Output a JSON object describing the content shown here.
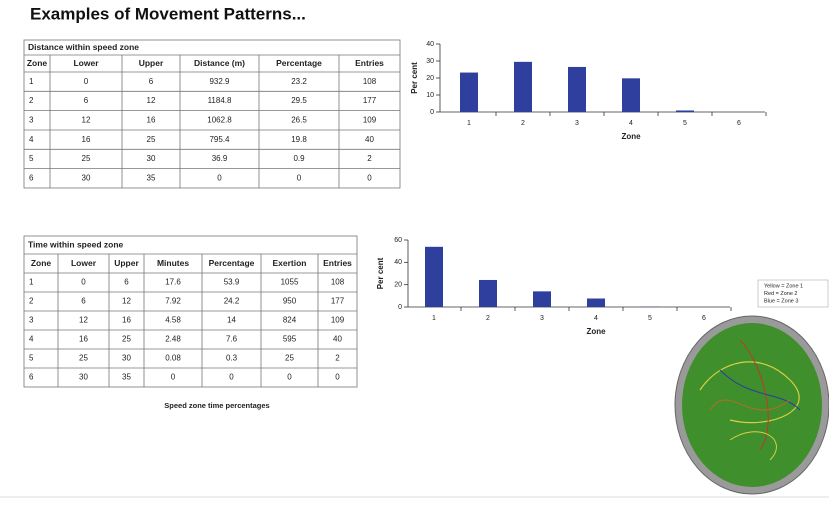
{
  "title": "Examples of Movement Patterns...",
  "tables": [
    {
      "caption": "Distance within speed zone",
      "headers": [
        "Zone",
        "Lower",
        "Upper",
        "Distance (m)",
        "Percentage",
        "Entries"
      ],
      "rows": [
        [
          "1",
          "0",
          "6",
          "932.9",
          "23.2",
          "108"
        ],
        [
          "2",
          "6",
          "12",
          "1184.8",
          "29.5",
          "177"
        ],
        [
          "3",
          "12",
          "16",
          "1062.8",
          "26.5",
          "109"
        ],
        [
          "4",
          "16",
          "25",
          "795.4",
          "19.8",
          "40"
        ],
        [
          "5",
          "25",
          "30",
          "36.9",
          "0.9",
          "2"
        ],
        [
          "6",
          "30",
          "35",
          "0",
          "0",
          "0"
        ]
      ]
    },
    {
      "caption": "Time within speed zone",
      "headers": [
        "Zone",
        "Lower",
        "Upper",
        "Minutes",
        "Percentage",
        "Exertion",
        "Entries"
      ],
      "rows": [
        [
          "1",
          "0",
          "6",
          "17.6",
          "53.9",
          "1055",
          "108"
        ],
        [
          "2",
          "6",
          "12",
          "7.92",
          "24.2",
          "950",
          "177"
        ],
        [
          "3",
          "12",
          "16",
          "4.58",
          "14",
          "824",
          "109"
        ],
        [
          "4",
          "16",
          "25",
          "2.48",
          "7.6",
          "595",
          "40"
        ],
        [
          "5",
          "25",
          "30",
          "0.08",
          "0.3",
          "25",
          "2"
        ],
        [
          "6",
          "30",
          "35",
          "0",
          "0",
          "0",
          "0"
        ]
      ]
    }
  ],
  "chart_data": [
    {
      "type": "bar",
      "ylabel": "Per cent",
      "xlabel": "Zone",
      "categories": [
        "1",
        "2",
        "3",
        "4",
        "5",
        "6"
      ],
      "values": [
        23.2,
        29.5,
        26.5,
        19.8,
        0.9,
        0
      ],
      "ylim": [
        0,
        40
      ],
      "yticks": [
        0,
        10,
        20,
        30,
        40
      ],
      "color": "#2e3f9e"
    },
    {
      "type": "bar",
      "ylabel": "Per cent",
      "xlabel": "Zone",
      "categories": [
        "1",
        "2",
        "3",
        "4",
        "5",
        "6"
      ],
      "values": [
        53.9,
        24.2,
        14,
        7.6,
        0.3,
        0
      ],
      "ylim": [
        0,
        60
      ],
      "yticks": [
        0,
        20,
        40,
        60
      ],
      "color": "#2e3f9e"
    }
  ],
  "figure_caption": "Speed zone time percentages",
  "image_legend": [
    "Yellow = Zone 1",
    "Red = Zone 2",
    "Blue = Zone 3"
  ]
}
